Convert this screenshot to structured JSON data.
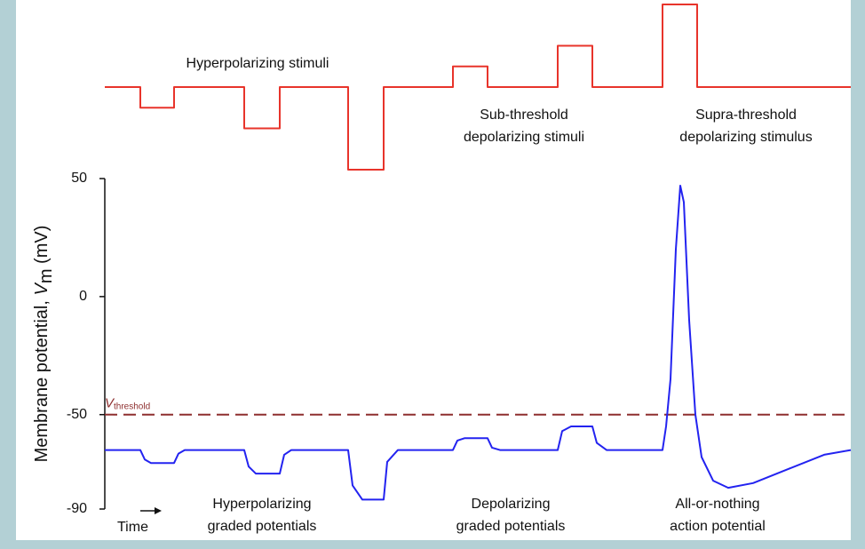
{
  "chart_data": [
    {
      "type": "line",
      "color": "#e8342b",
      "xlim": [
        0,
        840
      ],
      "ylim": [
        -4,
        4
      ],
      "x": [
        0,
        40,
        40,
        78,
        78,
        157,
        157,
        197,
        197,
        274,
        274,
        314,
        314,
        392,
        392,
        431,
        431,
        510,
        510,
        549,
        549,
        628,
        628,
        667,
        667,
        840
      ],
      "values": [
        0,
        0,
        -1,
        -1,
        0,
        0,
        -2,
        -2,
        0,
        0,
        -4,
        -4,
        0,
        0,
        1,
        1,
        0,
        0,
        2,
        2,
        0,
        0,
        4,
        4,
        0,
        0
      ],
      "annotations": [
        {
          "lines": [
            "Hyperpolarizing stimuli"
          ]
        },
        {
          "lines": [
            "Sub-threshold",
            "depolarizing stimuli"
          ]
        },
        {
          "lines": [
            "Supra-threshold",
            "depolarizing stimulus"
          ]
        }
      ]
    },
    {
      "type": "line",
      "color": "#2323f0",
      "xlim": [
        0,
        840
      ],
      "ylim": [
        -90,
        50
      ],
      "yticks": [
        -90,
        -50,
        0,
        50
      ],
      "ylabel": [
        "Membrane potential, ",
        "V",
        "m",
        " (mV)"
      ],
      "xlabel": "Time",
      "threshold": {
        "value": -50,
        "label": "V",
        "sub": "threshold",
        "color": "#8e2f2f"
      },
      "x": [
        0,
        40,
        45,
        52,
        78,
        83,
        90,
        157,
        162,
        170,
        197,
        202,
        210,
        274,
        279,
        290,
        314,
        318,
        330,
        392,
        397,
        405,
        431,
        436,
        445,
        510,
        515,
        525,
        549,
        554,
        565,
        628,
        632,
        637,
        643,
        648,
        652,
        658,
        665,
        672,
        685,
        702,
        730,
        770,
        810,
        840
      ],
      "values": [
        -65,
        -65,
        -69,
        -70.5,
        -70.5,
        -66.5,
        -65,
        -65,
        -72,
        -75,
        -75,
        -67,
        -65,
        -65,
        -80,
        -86,
        -86,
        -70,
        -65,
        -65,
        -61,
        -60,
        -60,
        -64,
        -65,
        -65,
        -57,
        -55,
        -55,
        -62,
        -65,
        -65,
        -55,
        -35,
        20,
        47,
        40,
        -10,
        -50,
        -68,
        -78,
        -81,
        -79,
        -73,
        -67,
        -65
      ],
      "annotations": [
        {
          "lines": [
            "Hyperpolarizing",
            "graded potentials"
          ]
        },
        {
          "lines": [
            "Depolarizing",
            "graded potentials"
          ]
        },
        {
          "lines": [
            "All-or-nothing",
            "action potential"
          ]
        }
      ]
    }
  ]
}
